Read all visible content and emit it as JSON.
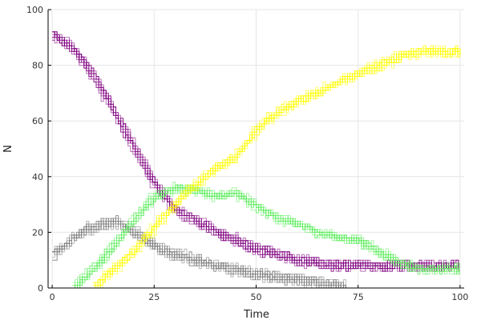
{
  "chart_data": {
    "type": "line",
    "xlabel": "Time",
    "ylabel": "N",
    "xlim": [
      -1,
      101
    ],
    "ylim": [
      0,
      100
    ],
    "xticks": [
      0,
      25,
      50,
      75,
      100
    ],
    "yticks": [
      0,
      20,
      40,
      60,
      80,
      100
    ],
    "grid": true,
    "legend": "none",
    "style": "stochastic step trajectories, many overlapping realizations per series",
    "series": [
      {
        "color": "#800080",
        "x": [
          0,
          5,
          10,
          15,
          20,
          25,
          30,
          40,
          50,
          60,
          70,
          100
        ],
        "y": [
          91,
          86,
          76,
          63,
          50,
          37,
          28,
          20,
          14,
          10,
          8,
          8
        ]
      },
      {
        "color": "#808080",
        "x": [
          0,
          5,
          10,
          15,
          20,
          25,
          30,
          40,
          50,
          60,
          70,
          72
        ],
        "y": [
          12,
          18,
          22,
          24,
          20,
          15,
          12,
          8,
          5,
          3,
          1,
          0
        ]
      },
      {
        "color": "#5fed5f",
        "x": [
          5,
          10,
          15,
          20,
          25,
          30,
          35,
          40,
          45,
          50,
          55,
          60,
          65,
          70,
          75,
          80,
          85,
          90,
          100
        ],
        "y": [
          0,
          7,
          15,
          25,
          33,
          36,
          35,
          33,
          34,
          29,
          25,
          23,
          20,
          18,
          17,
          13,
          9,
          7,
          7
        ]
      },
      {
        "color": "#ffff00",
        "x": [
          10,
          15,
          20,
          25,
          30,
          35,
          40,
          45,
          50,
          55,
          60,
          65,
          70,
          75,
          80,
          85,
          90,
          100
        ],
        "y": [
          0,
          7,
          13,
          22,
          30,
          37,
          43,
          47,
          57,
          63,
          67,
          70,
          74,
          77,
          80,
          83,
          85,
          85
        ]
      }
    ]
  }
}
